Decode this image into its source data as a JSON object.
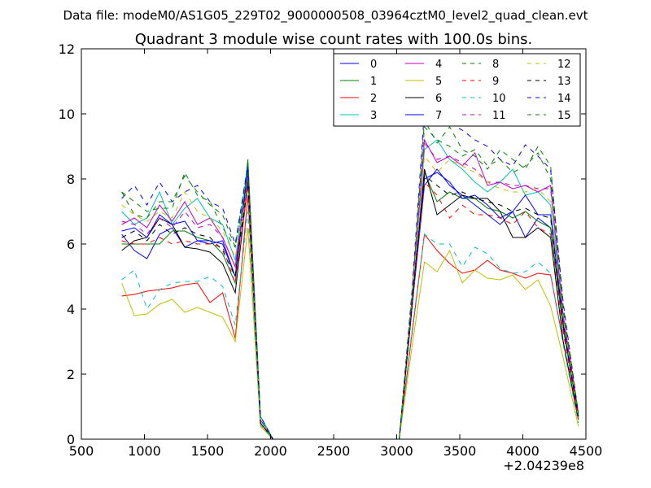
{
  "supertitle": "Data file: modeM0/AS1G05_229T02_9000000508_03964cztM0_level2_quad_clean.evt",
  "chart_data": {
    "type": "line",
    "title": "Quadrant 3 module wise count rates with 100.0s bins.",
    "xlabel": "",
    "ylabel": "",
    "x_offset_label": "+2.04239e8",
    "xlim": [
      500,
      4500
    ],
    "ylim": [
      0,
      12
    ],
    "xticks": [
      500,
      1000,
      1500,
      2000,
      2500,
      3000,
      3500,
      4000,
      4500
    ],
    "yticks": [
      0,
      2,
      4,
      6,
      8,
      10,
      12
    ],
    "grid": false,
    "legend_placement": "top-right",
    "x": [
      820,
      920,
      1020,
      1120,
      1220,
      1320,
      1420,
      1520,
      1620,
      1720,
      1820,
      1920,
      2020,
      3020,
      3120,
      3220,
      3320,
      3420,
      3520,
      3620,
      3720,
      3820,
      3920,
      4020,
      4120,
      4220,
      4320,
      4440
    ],
    "series": [
      {
        "name": "0",
        "color": "#0000ff",
        "dash": "solid",
        "values": [
          6.3,
          5.8,
          5.55,
          6.3,
          6.5,
          5.9,
          6.1,
          6.0,
          6.1,
          5.0,
          8.5,
          0.7,
          0.0,
          0.0,
          4.0,
          7.8,
          8.3,
          7.8,
          7.5,
          7.2,
          6.9,
          6.6,
          7.0,
          6.2,
          6.8,
          6.5,
          3.5,
          0.7
        ]
      },
      {
        "name": "1",
        "color": "#008000",
        "dash": "solid",
        "values": [
          6.0,
          6.0,
          6.0,
          6.0,
          6.4,
          6.4,
          6.2,
          6.1,
          5.7,
          4.8,
          8.6,
          0.5,
          0.0,
          0.0,
          4.0,
          8.2,
          7.3,
          7.6,
          7.4,
          7.4,
          7.1,
          7.0,
          6.8,
          7.0,
          6.7,
          6.5,
          3.4,
          0.7
        ]
      },
      {
        "name": "2",
        "color": "#ff0000",
        "dash": "solid",
        "values": [
          4.4,
          4.45,
          4.55,
          4.6,
          4.65,
          4.75,
          4.8,
          4.2,
          4.5,
          3.1,
          7.5,
          0.4,
          0.0,
          0.0,
          3.2,
          6.3,
          5.8,
          5.4,
          5.1,
          5.2,
          5.5,
          5.2,
          5.1,
          4.95,
          5.1,
          5.05,
          3.0,
          0.6
        ]
      },
      {
        "name": "3",
        "color": "#00bfbf",
        "dash": "solid",
        "values": [
          7.0,
          6.6,
          6.8,
          7.6,
          6.6,
          7.1,
          7.4,
          6.8,
          6.6,
          5.5,
          8.4,
          0.7,
          0.0,
          0.0,
          4.2,
          8.9,
          9.2,
          8.6,
          8.3,
          7.9,
          7.6,
          7.9,
          8.3,
          7.5,
          7.6,
          7.2,
          3.8,
          0.8
        ]
      },
      {
        "name": "4",
        "color": "#bf00bf",
        "dash": "solid",
        "values": [
          6.6,
          6.8,
          6.5,
          7.2,
          6.7,
          7.3,
          6.6,
          6.8,
          6.2,
          5.3,
          8.2,
          0.6,
          0.0,
          0.0,
          4.1,
          9.2,
          8.5,
          8.7,
          8.4,
          8.8,
          7.8,
          7.9,
          7.7,
          7.8,
          7.6,
          7.8,
          3.8,
          0.8
        ]
      },
      {
        "name": "5",
        "color": "#bfbf00",
        "dash": "solid",
        "values": [
          4.8,
          3.8,
          3.85,
          4.15,
          4.3,
          3.9,
          4.05,
          3.9,
          3.75,
          3.0,
          6.5,
          0.4,
          0.0,
          0.0,
          2.8,
          5.45,
          5.15,
          5.8,
          4.8,
          5.2,
          4.95,
          4.9,
          5.05,
          4.6,
          4.9,
          4.1,
          2.5,
          0.4
        ]
      },
      {
        "name": "6",
        "color": "#000000",
        "dash": "solid",
        "values": [
          5.8,
          6.1,
          6.2,
          6.8,
          6.6,
          5.9,
          5.85,
          5.75,
          5.4,
          4.5,
          7.9,
          0.5,
          0.0,
          0.0,
          4.0,
          8.3,
          6.9,
          7.2,
          7.5,
          7.4,
          7.4,
          7.0,
          6.2,
          6.2,
          6.5,
          6.2,
          3.0,
          0.6
        ]
      },
      {
        "name": "7",
        "color": "#0000ff",
        "dash": "solid",
        "values": [
          6.4,
          6.5,
          6.2,
          6.9,
          6.6,
          6.7,
          6.1,
          6.1,
          6.0,
          5.0,
          8.3,
          0.6,
          0.0,
          0.0,
          4.1,
          8.0,
          8.2,
          7.9,
          7.4,
          7.5,
          7.2,
          6.8,
          7.0,
          7.5,
          6.9,
          6.9,
          3.6,
          0.7
        ]
      },
      {
        "name": "8",
        "color": "#008000",
        "dash": "dashed",
        "values": [
          7.6,
          7.3,
          7.0,
          7.1,
          7.1,
          8.2,
          7.5,
          7.3,
          6.5,
          5.9,
          8.5,
          0.6,
          0.0,
          0.0,
          4.3,
          9.8,
          9.1,
          9.6,
          8.9,
          8.7,
          8.3,
          8.9,
          8.6,
          8.3,
          9.0,
          8.4,
          4.1,
          0.8
        ]
      },
      {
        "name": "9",
        "color": "#ff0000",
        "dash": "dashed",
        "values": [
          6.1,
          6.0,
          6.0,
          6.2,
          6.0,
          6.1,
          6.0,
          6.0,
          5.9,
          4.8,
          7.8,
          0.5,
          0.0,
          0.0,
          4.0,
          7.9,
          7.5,
          6.8,
          7.2,
          6.9,
          6.9,
          6.8,
          6.6,
          7.0,
          6.5,
          6.3,
          3.3,
          0.6
        ]
      },
      {
        "name": "10",
        "color": "#00bfbf",
        "dash": "dashed",
        "values": [
          4.9,
          5.2,
          4.0,
          4.6,
          4.8,
          4.85,
          4.85,
          5.0,
          4.7,
          3.5,
          7.0,
          0.45,
          0.0,
          0.0,
          3.3,
          6.3,
          6.0,
          6.0,
          5.3,
          5.9,
          5.7,
          5.25,
          5.1,
          5.15,
          5.45,
          5.1,
          2.9,
          0.5
        ]
      },
      {
        "name": "11",
        "color": "#bf00bf",
        "dash": "dashed",
        "values": [
          6.7,
          6.6,
          6.3,
          6.8,
          6.5,
          7.0,
          6.5,
          6.6,
          6.2,
          5.3,
          8.0,
          0.5,
          0.0,
          0.0,
          4.2,
          9.1,
          8.6,
          8.7,
          8.5,
          8.3,
          7.9,
          7.9,
          7.8,
          7.8,
          7.7,
          7.7,
          3.8,
          0.7
        ]
      },
      {
        "name": "12",
        "color": "#bfbf00",
        "dash": "dashed",
        "values": [
          7.2,
          6.9,
          6.7,
          7.0,
          6.8,
          7.6,
          7.0,
          6.8,
          6.4,
          5.6,
          7.8,
          0.6,
          0.0,
          0.0,
          4.3,
          8.7,
          8.2,
          8.6,
          8.4,
          8.2,
          7.9,
          7.7,
          7.6,
          7.6,
          7.7,
          7.3,
          3.7,
          0.7
        ]
      },
      {
        "name": "13",
        "color": "#000000",
        "dash": "dashed",
        "values": [
          6.2,
          6.4,
          6.1,
          6.6,
          6.3,
          6.5,
          6.3,
          6.2,
          5.8,
          5.0,
          7.9,
          0.5,
          0.0,
          0.0,
          4.1,
          8.1,
          7.8,
          7.5,
          7.6,
          7.4,
          7.3,
          7.2,
          7.0,
          7.1,
          6.9,
          6.8,
          3.5,
          0.7
        ]
      },
      {
        "name": "14",
        "color": "#0000ff",
        "dash": "dashed",
        "values": [
          7.4,
          7.8,
          7.2,
          7.9,
          7.3,
          7.6,
          7.8,
          7.3,
          7.1,
          6.0,
          8.4,
          0.7,
          0.0,
          0.0,
          4.5,
          10.1,
          9.8,
          9.7,
          9.5,
          9.2,
          9.0,
          8.6,
          8.4,
          9.05,
          8.7,
          8.3,
          4.2,
          0.8
        ]
      },
      {
        "name": "15",
        "color": "#008000",
        "dash": "dashed",
        "values": [
          7.6,
          6.9,
          6.8,
          7.3,
          7.3,
          8.1,
          7.6,
          7.2,
          6.9,
          5.9,
          8.2,
          0.6,
          0.0,
          0.0,
          4.4,
          9.6,
          9.2,
          9.0,
          8.7,
          8.9,
          8.4,
          8.6,
          8.2,
          8.4,
          8.8,
          8.0,
          4.0,
          0.8
        ]
      }
    ]
  }
}
